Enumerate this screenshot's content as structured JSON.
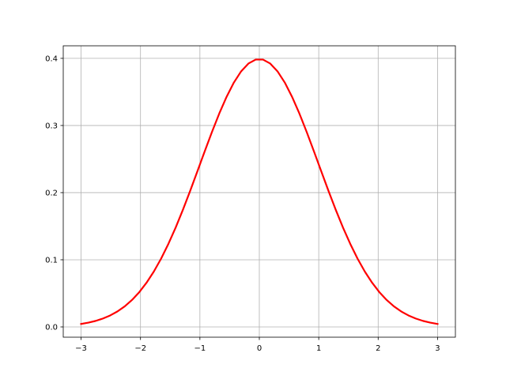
{
  "chart_data": {
    "type": "line",
    "title": "",
    "xlabel": "",
    "ylabel": "",
    "xlim": [
      -3.3,
      3.3
    ],
    "ylim": [
      -0.0153,
      0.4187
    ],
    "grid": true,
    "xticks": [
      -3,
      -2,
      -1,
      0,
      1,
      2,
      3
    ],
    "xtick_labels": [
      "−3",
      "−2",
      "−1",
      "0",
      "1",
      "2",
      "3"
    ],
    "yticks": [
      0.0,
      0.1,
      0.2,
      0.3,
      0.4
    ],
    "ytick_labels": [
      "0.0",
      "0.1",
      "0.2",
      "0.3",
      "0.4"
    ],
    "series": [
      {
        "color": "#ff0000",
        "x": [
          -3,
          -2.87755,
          -2.7551,
          -2.63265,
          -2.5102,
          -2.38776,
          -2.26531,
          -2.14286,
          -2.02041,
          -1.89796,
          -1.77551,
          -1.65306,
          -1.53061,
          -1.40816,
          -1.28571,
          -1.16327,
          -1.04082,
          -0.91837,
          -0.79592,
          -0.67347,
          -0.55102,
          -0.42857,
          -0.30612,
          -0.18367,
          -0.06122,
          0.06122,
          0.18367,
          0.30612,
          0.42857,
          0.55102,
          0.67347,
          0.79592,
          0.91837,
          1.04082,
          1.16327,
          1.28571,
          1.40816,
          1.53061,
          1.65306,
          1.77551,
          1.89796,
          2.02041,
          2.14286,
          2.26531,
          2.38776,
          2.5102,
          2.63265,
          2.7551,
          2.87755,
          3
        ],
        "y": [
          0.004432,
          0.006349,
          0.008964,
          0.01247,
          0.017081,
          0.023058,
          0.030659,
          0.040158,
          0.051813,
          0.065881,
          0.082484,
          0.101755,
          0.123645,
          0.148009,
          0.174566,
          0.202811,
          0.232102,
          0.26169,
          0.290641,
          0.317994,
          0.342751,
          0.363936,
          0.380681,
          0.392269,
          0.398195,
          0.398195,
          0.392269,
          0.380681,
          0.363936,
          0.342751,
          0.317994,
          0.290641,
          0.26169,
          0.232102,
          0.202811,
          0.174566,
          0.148009,
          0.123645,
          0.101755,
          0.082484,
          0.065881,
          0.051813,
          0.040158,
          0.030659,
          0.023058,
          0.017081,
          0.01247,
          0.008964,
          0.006349,
          0.004432
        ]
      }
    ]
  }
}
